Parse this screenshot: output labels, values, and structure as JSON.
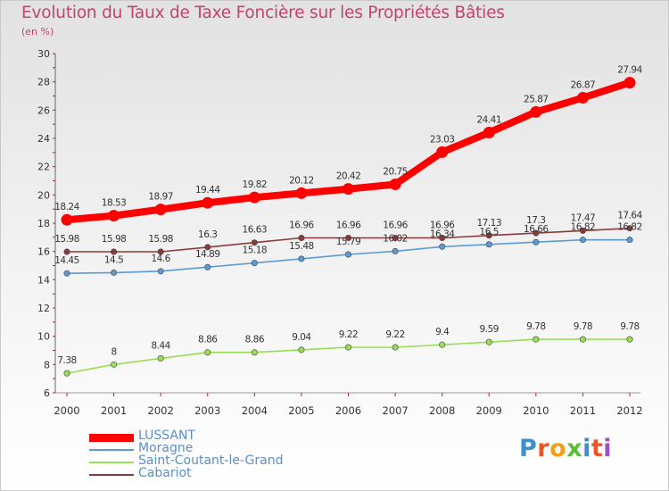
{
  "header": {
    "title": "Evolution du Taux de Taxe Foncière sur les Propriétés Bâties",
    "subtitle": "(en %)"
  },
  "logo": {
    "text": "Proxiti",
    "colors": [
      "#3a8fd1",
      "#e8572a",
      "#f0a21a",
      "#5bbd3a",
      "#3a8fd1",
      "#e8572a",
      "#9a4fc4"
    ]
  },
  "chart_data": {
    "type": "line",
    "title": "Evolution du Taux de Taxe Foncière sur les Propriétés Bâties",
    "ylabel": "(en %)",
    "xlabel": "",
    "ylim": [
      6,
      30
    ],
    "yticks": [
      6,
      8,
      10,
      12,
      14,
      16,
      18,
      20,
      22,
      24,
      26,
      28,
      30
    ],
    "grid": false,
    "legend_position": "bottom-left",
    "x": [
      "2000",
      "2001",
      "2002",
      "2003",
      "2004",
      "2005",
      "2006",
      "2007",
      "2008",
      "2009",
      "2010",
      "2011",
      "2012"
    ],
    "series": [
      {
        "name": "LUSSANT",
        "color": "#ff0000",
        "highlight": true,
        "values": [
          18.24,
          18.53,
          18.97,
          19.44,
          19.82,
          20.12,
          20.42,
          20.75,
          23.03,
          24.41,
          25.87,
          26.87,
          27.94
        ],
        "labels": [
          "18.24",
          "18.53",
          "18.97",
          "19.44",
          "19.82",
          "20.12",
          "20.42",
          "20.75",
          "23.03",
          "24.41",
          "25.87",
          "26.87",
          "27.94"
        ]
      },
      {
        "name": "Moragne",
        "color": "#5b9bd5",
        "values": [
          14.45,
          14.5,
          14.6,
          14.89,
          15.18,
          15.48,
          15.79,
          16.02,
          16.34,
          16.5,
          16.66,
          16.82,
          16.82
        ],
        "labels": [
          "14.45",
          "14.5",
          "14.6",
          "14.89",
          "15.18",
          "15.48",
          "15.79",
          "16.02",
          "16.34",
          "16.5",
          "16.66",
          "16.82",
          "16.82"
        ]
      },
      {
        "name": "Saint-Coutant-le-Grand",
        "color": "#99dd55",
        "values": [
          7.38,
          8,
          8.44,
          8.86,
          8.86,
          9.04,
          9.22,
          9.22,
          9.4,
          9.59,
          9.78,
          9.78,
          9.78
        ],
        "labels": [
          "7.38",
          "8",
          "8.44",
          "8.86",
          "8.86",
          "9.04",
          "9.22",
          "9.22",
          "9.4",
          "9.59",
          "9.78",
          "9.78",
          "9.78"
        ]
      },
      {
        "name": "Cabariot",
        "color": "#8b3a3a",
        "values": [
          15.98,
          15.98,
          15.98,
          16.3,
          16.63,
          16.96,
          16.96,
          16.96,
          16.96,
          17.13,
          17.3,
          17.47,
          17.64
        ],
        "labels": [
          "15.98",
          "15.98",
          "15.98",
          "16.3",
          "16.63",
          "16.96",
          "16.96",
          "16.96",
          "16.96",
          "17.13",
          "17.3",
          "17.47",
          "17.64"
        ]
      }
    ]
  }
}
